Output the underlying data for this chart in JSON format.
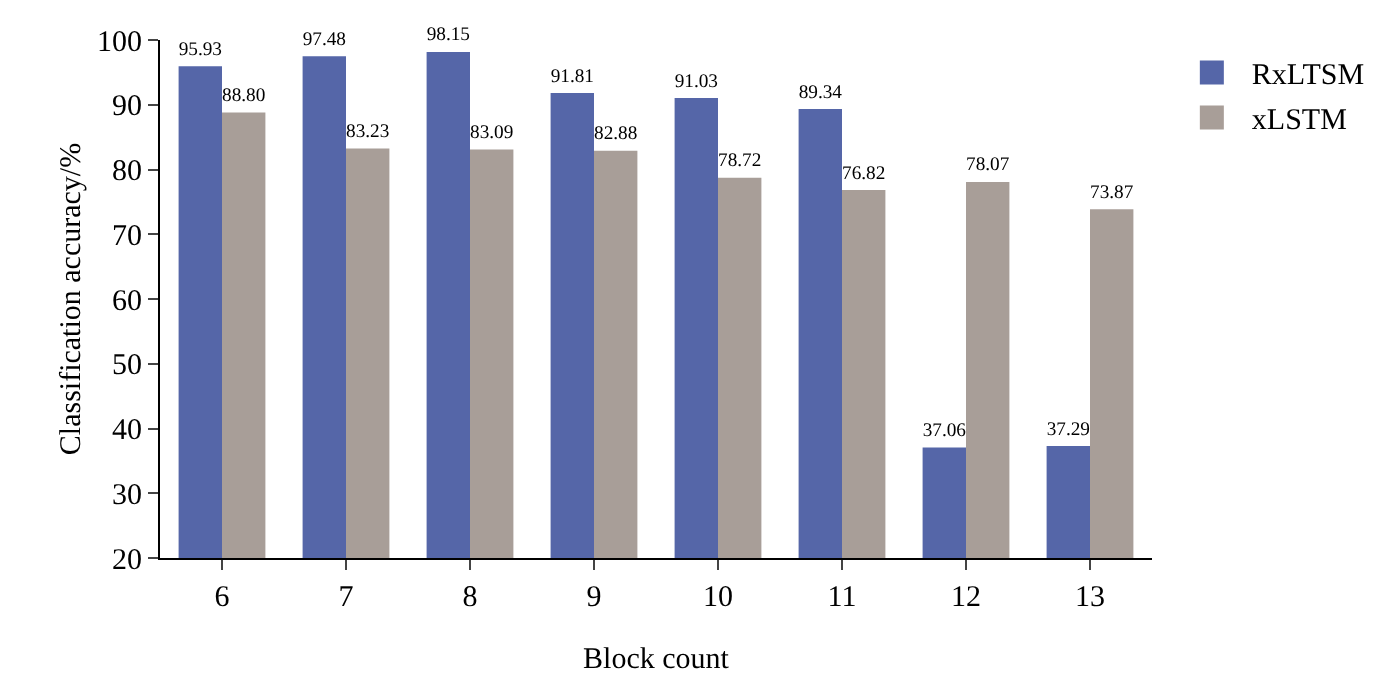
{
  "chart_data": {
    "type": "bar",
    "xlabel": "Block count",
    "ylabel": "Classification accuracy/%",
    "categories": [
      "6",
      "7",
      "8",
      "9",
      "10",
      "11",
      "12",
      "13"
    ],
    "series": [
      {
        "name": "RxLTSM",
        "color": "#5566a8",
        "values": [
          95.93,
          97.48,
          98.15,
          91.81,
          91.03,
          89.34,
          37.06,
          37.29
        ],
        "value_labels": [
          "95.93",
          "97.48",
          "98.15",
          "91.81",
          "91.03",
          "89.34",
          "37.06",
          "37.29"
        ]
      },
      {
        "name": "xLSTM",
        "color": "#a89e98",
        "values": [
          88.8,
          83.23,
          83.09,
          82.88,
          78.72,
          76.82,
          78.07,
          73.87
        ],
        "value_labels": [
          "88.80",
          "83.23",
          "83.09",
          "82.88",
          "78.72",
          "76.82",
          "78.07",
          "73.87"
        ]
      }
    ],
    "ylim": [
      20,
      100
    ],
    "yticks": [
      20,
      30,
      40,
      50,
      60,
      70,
      80,
      90,
      100
    ],
    "grid": false,
    "legend": "top right"
  }
}
